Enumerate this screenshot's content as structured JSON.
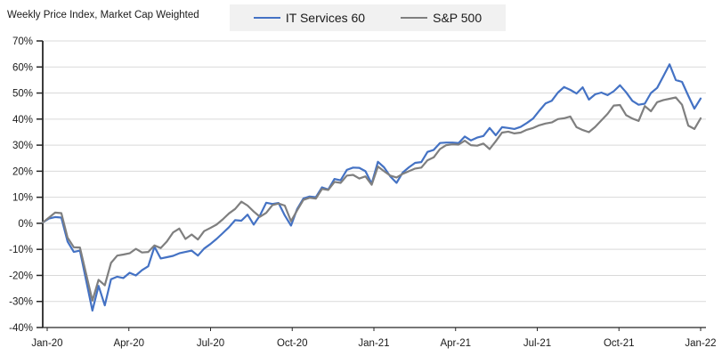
{
  "header": {
    "title": "Weekly Price Index, Market Cap Weighted"
  },
  "legend": {
    "items": [
      {
        "label": "IT Services 60",
        "color": "#4472C4"
      },
      {
        "label": "S&P 500",
        "color": "#7F7F7F"
      }
    ],
    "background": "#F1F1F1",
    "position": "top-center"
  },
  "colors": {
    "accent_blue": "#4472C4",
    "accent_gray": "#7F7F7F",
    "gridline": "#D9D9D9",
    "axis": "#262626",
    "text": "#1a1a1a",
    "legend_bg": "#F1F1F1"
  },
  "chart_data": {
    "type": "line",
    "title": "Weekly Price Index, Market Cap Weighted",
    "xlabel": "",
    "ylabel": "",
    "ylim": [
      -40,
      70
    ],
    "y_tick_step": 10,
    "grid": "horizontal",
    "legend_position": "top",
    "y_tick_labels": [
      "70%",
      "60%",
      "50%",
      "40%",
      "30%",
      "20%",
      "10%",
      "0%",
      "-10%",
      "-20%",
      "-30%",
      "-40%"
    ],
    "x_tick_labels": [
      "Jan-20",
      "Apr-20",
      "Jul-20",
      "Oct-20",
      "Jan-21",
      "Apr-21",
      "Jul-21",
      "Oct-21",
      "Jan-22"
    ],
    "x_unit": "weekly",
    "series": [
      {
        "name": "IT Services 60",
        "color": "#4472C4",
        "values": [
          0.3,
          1.8,
          2.4,
          2.2,
          -7.0,
          -11.0,
          -10.5,
          -22.0,
          -33.5,
          -24.0,
          -31.5,
          -21.5,
          -20.5,
          -21.0,
          -19.0,
          -20.0,
          -18.0,
          -16.5,
          -9.0,
          -13.5,
          -13.0,
          -12.5,
          -11.5,
          -11.0,
          -10.5,
          -12.4,
          -9.7,
          -8.0,
          -6.0,
          -3.8,
          -1.5,
          1.2,
          1.0,
          3.3,
          -0.5,
          3.0,
          7.9,
          7.4,
          7.8,
          3.0,
          -0.9,
          5.5,
          9.5,
          10.3,
          10.0,
          13.8,
          13.0,
          17.0,
          16.5,
          20.5,
          21.4,
          21.3,
          20.0,
          15.2,
          23.6,
          21.5,
          18.0,
          15.5,
          19.5,
          21.5,
          23.2,
          23.5,
          27.4,
          28.2,
          30.8,
          31.0,
          31.0,
          30.8,
          33.3,
          31.8,
          32.9,
          33.5,
          36.6,
          33.8,
          36.9,
          36.6,
          36.2,
          37.0,
          38.5,
          40.2,
          43.2,
          46.0,
          47.0,
          50.2,
          52.3,
          51.2,
          49.8,
          52.2,
          47.5,
          49.5,
          50.2,
          49.2,
          50.7,
          53.0,
          50.3,
          47.0,
          45.5,
          45.9,
          50.0,
          52.0,
          56.5,
          61.0,
          55.0,
          54.3,
          49.0,
          44.0,
          47.9
        ]
      },
      {
        "name": "S&P 500",
        "color": "#7F7F7F",
        "values": [
          0.3,
          2.2,
          4.1,
          3.9,
          -5.5,
          -9.2,
          -9.3,
          -19.5,
          -29.7,
          -21.7,
          -23.8,
          -15.2,
          -12.4,
          -12.0,
          -11.5,
          -9.8,
          -11.2,
          -11.0,
          -8.5,
          -9.5,
          -7.0,
          -3.5,
          -2.0,
          -6.0,
          -4.3,
          -6.2,
          -3.0,
          -1.8,
          -0.5,
          1.5,
          3.8,
          5.5,
          8.3,
          6.8,
          4.5,
          2.5,
          4.0,
          7.0,
          7.6,
          6.8,
          0.8,
          5.0,
          9.0,
          9.8,
          9.5,
          13.2,
          12.8,
          15.9,
          15.5,
          18.3,
          18.6,
          17.2,
          18.0,
          14.8,
          21.8,
          20.0,
          18.3,
          17.6,
          19.0,
          20.0,
          21.0,
          21.4,
          24.2,
          25.3,
          28.5,
          30.0,
          30.3,
          30.2,
          31.7,
          30.0,
          29.8,
          30.6,
          28.5,
          31.5,
          34.8,
          35.2,
          34.5,
          34.8,
          35.9,
          36.6,
          37.6,
          38.3,
          38.7,
          40.0,
          40.3,
          41.0,
          36.9,
          35.8,
          35.0,
          37.0,
          39.5,
          42.0,
          45.2,
          45.4,
          41.5,
          40.2,
          39.3,
          45.0,
          43.0,
          46.5,
          47.3,
          47.8,
          48.3,
          45.5,
          37.5,
          36.2,
          40.3
        ]
      }
    ]
  }
}
